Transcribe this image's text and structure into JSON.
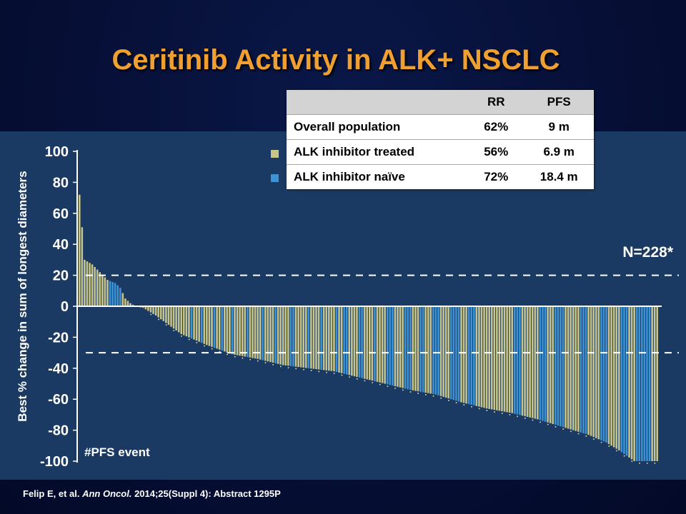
{
  "title": "Ceritinib Activity in ALK+  NSCLC",
  "colors": {
    "title": "#f0a030",
    "panel": "#1b3a63",
    "treated": "#c8c58a",
    "naive": "#3c93d6",
    "pfs_marker": "#e8e0a0"
  },
  "table": {
    "headers": [
      "",
      "RR",
      "PFS"
    ],
    "rows": [
      {
        "label": "Overall population",
        "rr": "62%",
        "pfs": "9 m"
      },
      {
        "label": "ALK inhibitor treated",
        "rr": "56%",
        "pfs": "6.9 m"
      },
      {
        "label": "ALK inhibitor naïve",
        "rr": "72%",
        "pfs": "18.4 m"
      }
    ]
  },
  "chart_data": {
    "type": "bar",
    "ylabel": "Best  % change in sum of longest diameters",
    "ylim": [
      -100,
      100
    ],
    "yticks": [
      100,
      80,
      60,
      40,
      20,
      0,
      -20,
      -40,
      -60,
      -80,
      -100
    ],
    "reference_lines": [
      20,
      -30
    ],
    "annotation": "N=228*",
    "footnote": "#PFS event",
    "series": [
      {
        "name": "ALK inhibitor treated",
        "color": "#c8c58a"
      },
      {
        "name": "ALK inhibitor naïve",
        "color": "#3c93d6"
      }
    ],
    "waterfall_points": [
      [
        0,
        72
      ],
      [
        2,
        30
      ],
      [
        5,
        27
      ],
      [
        8,
        22
      ],
      [
        11,
        17
      ],
      [
        14,
        15
      ],
      [
        16,
        12
      ],
      [
        18,
        5
      ],
      [
        20,
        2
      ],
      [
        22,
        0
      ],
      [
        25,
        -1
      ],
      [
        30,
        -6
      ],
      [
        35,
        -12
      ],
      [
        40,
        -18
      ],
      [
        50,
        -25
      ],
      [
        60,
        -31
      ],
      [
        70,
        -34
      ],
      [
        80,
        -38
      ],
      [
        90,
        -40
      ],
      [
        100,
        -42
      ],
      [
        110,
        -46
      ],
      [
        120,
        -50
      ],
      [
        130,
        -54
      ],
      [
        140,
        -57
      ],
      [
        150,
        -62
      ],
      [
        160,
        -66
      ],
      [
        170,
        -69
      ],
      [
        180,
        -73
      ],
      [
        190,
        -78
      ],
      [
        200,
        -83
      ],
      [
        207,
        -88
      ],
      [
        212,
        -93
      ],
      [
        218,
        -100
      ],
      [
        227,
        -100
      ]
    ],
    "naive_ranges": [
      [
        12,
        16
      ],
      [
        44,
        44
      ],
      [
        48,
        48
      ],
      [
        53,
        53
      ],
      [
        56,
        56
      ],
      [
        60,
        60
      ],
      [
        66,
        66
      ],
      [
        72,
        72
      ],
      [
        77,
        77
      ],
      [
        83,
        84
      ],
      [
        90,
        90
      ],
      [
        95,
        95
      ],
      [
        101,
        101
      ],
      [
        104,
        105
      ],
      [
        110,
        111
      ],
      [
        116,
        116
      ],
      [
        121,
        123
      ],
      [
        128,
        130
      ],
      [
        134,
        135
      ],
      [
        139,
        141
      ],
      [
        146,
        149
      ],
      [
        153,
        155
      ],
      [
        171,
        173
      ],
      [
        181,
        183
      ],
      [
        187,
        190
      ],
      [
        197,
        199
      ],
      [
        205,
        207
      ],
      [
        213,
        215
      ],
      [
        219,
        224
      ]
    ]
  },
  "citation": {
    "authors": "Felip E, et al.",
    "journal": "Ann Oncol.",
    "details": "2014;25(Suppl 4): Abstract 1295P"
  }
}
